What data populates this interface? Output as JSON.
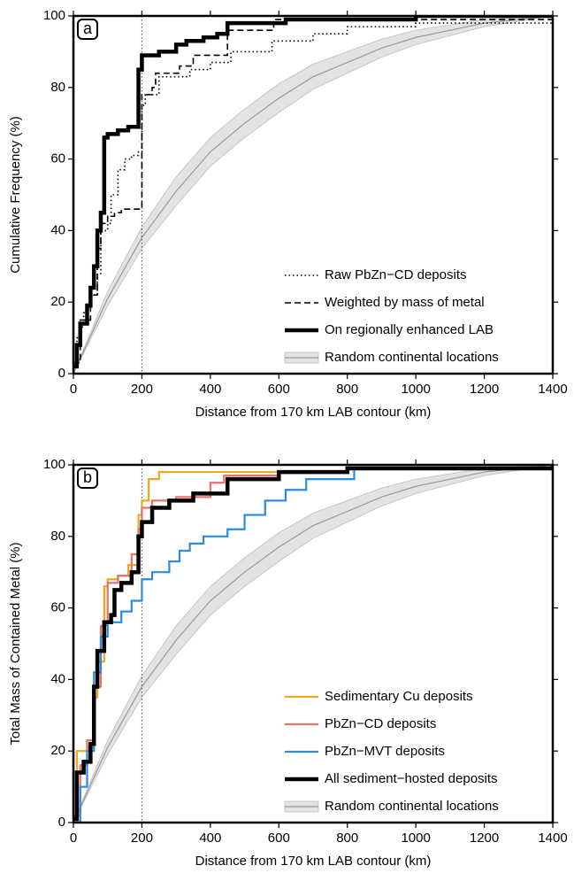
{
  "chart_data": [
    {
      "type": "line",
      "panel_label": "a",
      "xlabel": "Distance from 170 km LAB contour (km)",
      "ylabel": "Cumulative Frequency (%)",
      "xlim": [
        0,
        1400
      ],
      "ylim": [
        0,
        100
      ],
      "xticks": [
        0,
        200,
        400,
        600,
        800,
        1000,
        1200,
        1400
      ],
      "yticks": [
        0,
        20,
        40,
        60,
        80,
        100
      ],
      "vline": 200,
      "legend": "lower right",
      "series": [
        {
          "name": "Raw PbZn−CD deposits",
          "color": "#000000",
          "dash": "dotted",
          "width": 1.6,
          "x": [
            0,
            10,
            10,
            20,
            20,
            30,
            30,
            40,
            40,
            50,
            50,
            70,
            70,
            80,
            80,
            100,
            100,
            110,
            110,
            130,
            130,
            150,
            150,
            170,
            170,
            190,
            190,
            200,
            200,
            210,
            210,
            250,
            250,
            340,
            340,
            400,
            400,
            460,
            460,
            580,
            580,
            700,
            700,
            800,
            800,
            1000,
            1000,
            1400,
            1400
          ],
          "values": [
            2,
            2,
            10,
            10,
            13,
            13,
            17,
            17,
            20,
            20,
            22,
            22,
            28,
            28,
            40,
            40,
            42,
            42,
            50,
            50,
            57,
            57,
            60,
            60,
            61,
            61,
            62,
            62,
            75,
            75,
            78,
            78,
            83,
            83,
            85,
            85,
            87,
            87,
            90,
            90,
            93,
            93,
            95,
            95,
            97,
            97,
            98,
            98,
            100
          ]
        },
        {
          "name": "Weighted by mass of metal",
          "color": "#000000",
          "dash": "dashed",
          "width": 1.6,
          "x": [
            0,
            20,
            20,
            50,
            50,
            70,
            70,
            80,
            80,
            100,
            100,
            120,
            120,
            140,
            140,
            200,
            200,
            230,
            230,
            240,
            240,
            310,
            310,
            350,
            350,
            450,
            450,
            585,
            585,
            1400,
            1400
          ],
          "values": [
            3,
            3,
            15,
            15,
            22,
            22,
            35,
            35,
            42,
            42,
            44,
            44,
            45,
            45,
            46,
            46,
            78,
            78,
            80,
            80,
            84,
            84,
            86,
            86,
            89,
            89,
            96,
            96,
            99,
            99,
            100
          ]
        },
        {
          "name": "On regionally enhanced LAB",
          "color": "#000000",
          "dash": "solid",
          "width": 4.5,
          "x": [
            0,
            10,
            10,
            20,
            20,
            40,
            40,
            50,
            50,
            60,
            60,
            70,
            70,
            80,
            80,
            90,
            90,
            100,
            100,
            130,
            130,
            160,
            160,
            190,
            190,
            200,
            200,
            250,
            250,
            300,
            300,
            330,
            330,
            380,
            380,
            420,
            420,
            450,
            450,
            620,
            620,
            1000,
            1000,
            1400,
            1400
          ],
          "values": [
            2,
            2,
            8,
            8,
            14,
            14,
            19,
            19,
            24,
            24,
            30,
            30,
            40,
            40,
            45,
            45,
            66,
            66,
            67,
            67,
            68,
            68,
            69,
            69,
            85,
            85,
            89,
            89,
            90,
            90,
            92,
            92,
            93,
            93,
            94,
            94,
            95,
            95,
            98,
            98,
            99,
            99,
            100,
            100,
            100
          ]
        },
        {
          "name": "Random continental locations",
          "color": "#999999",
          "band_color": "#e3e3e3",
          "dash": "solid",
          "width": 1.2,
          "band": true,
          "x": [
            0,
            100,
            200,
            300,
            400,
            500,
            600,
            700,
            800,
            900,
            1000,
            1100,
            1200,
            1300,
            1400
          ],
          "values": [
            0,
            21,
            38,
            51,
            62,
            70,
            77,
            83,
            87,
            91,
            94,
            96,
            98,
            99,
            100
          ],
          "lower": [
            0,
            19,
            35,
            47,
            58,
            66,
            73,
            79.5,
            84,
            88.5,
            92,
            94.5,
            97,
            98.5,
            100
          ],
          "upper": [
            0,
            23,
            41,
            55,
            66,
            74,
            81,
            86.5,
            90,
            93.5,
            96,
            97.5,
            99,
            99.5,
            100
          ]
        }
      ]
    },
    {
      "type": "line",
      "panel_label": "b",
      "xlabel": "Distance from 170 km LAB contour (km)",
      "ylabel": "Total Mass of Contained Metal (%)",
      "xlim": [
        0,
        1400
      ],
      "ylim": [
        0,
        100
      ],
      "xticks": [
        0,
        200,
        400,
        600,
        800,
        1000,
        1200,
        1400
      ],
      "yticks": [
        0,
        20,
        40,
        60,
        80,
        100
      ],
      "vline": 200,
      "legend": "lower right",
      "series": [
        {
          "name": "Sedimentary Cu deposits",
          "color": "#f0a820",
          "dash": "solid",
          "width": 2.2,
          "x": [
            0,
            10,
            10,
            40,
            40,
            60,
            60,
            70,
            70,
            90,
            90,
            100,
            100,
            130,
            130,
            160,
            160,
            190,
            190,
            200,
            200,
            220,
            220,
            250,
            250,
            800,
            800,
            1400,
            1400
          ],
          "values": [
            0,
            0,
            20,
            20,
            21,
            21,
            35,
            35,
            45,
            45,
            66,
            66,
            68,
            68,
            69,
            69,
            72,
            72,
            86,
            86,
            90,
            90,
            96,
            96,
            98,
            98,
            99,
            99,
            100
          ]
        },
        {
          "name": "PbZn−CD deposits",
          "color": "#e8736a",
          "dash": "solid",
          "width": 2.2,
          "x": [
            0,
            20,
            20,
            40,
            40,
            60,
            60,
            80,
            80,
            100,
            100,
            130,
            130,
            170,
            170,
            190,
            190,
            200,
            200,
            230,
            230,
            300,
            300,
            400,
            400,
            440,
            440,
            600,
            600,
            800,
            800,
            1400,
            1400
          ],
          "values": [
            2,
            2,
            16,
            16,
            23,
            23,
            38,
            38,
            55,
            55,
            67,
            67,
            69,
            69,
            75,
            75,
            82,
            82,
            88,
            88,
            90,
            90,
            91,
            91,
            95,
            95,
            97,
            97,
            98,
            98,
            99,
            99,
            100
          ]
        },
        {
          "name": "PbZn−MVT deposits",
          "color": "#2b8be0",
          "dash": "solid",
          "width": 2.2,
          "x": [
            0,
            20,
            20,
            40,
            40,
            60,
            60,
            80,
            80,
            100,
            100,
            140,
            140,
            170,
            170,
            200,
            200,
            230,
            230,
            280,
            280,
            310,
            310,
            340,
            340,
            380,
            380,
            450,
            450,
            500,
            500,
            560,
            560,
            620,
            620,
            680,
            680,
            820,
            820,
            1400,
            1400
          ],
          "values": [
            0,
            0,
            10,
            10,
            20,
            20,
            42,
            42,
            52,
            52,
            56,
            56,
            59,
            59,
            62,
            62,
            68,
            68,
            70,
            70,
            73,
            73,
            76,
            76,
            78,
            78,
            80,
            80,
            82,
            82,
            86,
            86,
            90,
            90,
            93,
            93,
            96,
            96,
            99,
            99,
            100
          ]
        },
        {
          "name": "All sediment−hosted deposits",
          "color": "#000000",
          "dash": "solid",
          "width": 4.5,
          "x": [
            0,
            10,
            10,
            30,
            30,
            50,
            50,
            60,
            60,
            70,
            70,
            90,
            90,
            110,
            110,
            120,
            120,
            140,
            140,
            170,
            170,
            190,
            190,
            200,
            200,
            230,
            230,
            280,
            280,
            350,
            350,
            450,
            450,
            600,
            600,
            800,
            800,
            1400,
            1400
          ],
          "values": [
            1,
            1,
            14,
            14,
            17,
            17,
            22,
            22,
            38,
            38,
            48,
            48,
            56,
            56,
            58,
            58,
            65,
            65,
            67,
            67,
            70,
            70,
            80,
            80,
            84,
            84,
            88,
            88,
            90,
            90,
            92,
            92,
            96,
            96,
            98,
            98,
            99,
            99,
            100
          ]
        },
        {
          "name": "Random continental locations",
          "color": "#999999",
          "band_color": "#e3e3e3",
          "dash": "solid",
          "width": 1.2,
          "band": true,
          "x": [
            0,
            100,
            200,
            300,
            400,
            500,
            600,
            700,
            800,
            900,
            1000,
            1100,
            1200,
            1300,
            1400
          ],
          "values": [
            0,
            21,
            38,
            51,
            62,
            70,
            77,
            83,
            87,
            91,
            94,
            96,
            98,
            99,
            100
          ],
          "lower": [
            0,
            19,
            35,
            47,
            58,
            66,
            73,
            79.5,
            84,
            88.5,
            92,
            94.5,
            97,
            98.5,
            100
          ],
          "upper": [
            0,
            23,
            41,
            55,
            66,
            74,
            81,
            86.5,
            90,
            93.5,
            96,
            97.5,
            99,
            99.5,
            100
          ]
        }
      ]
    }
  ]
}
